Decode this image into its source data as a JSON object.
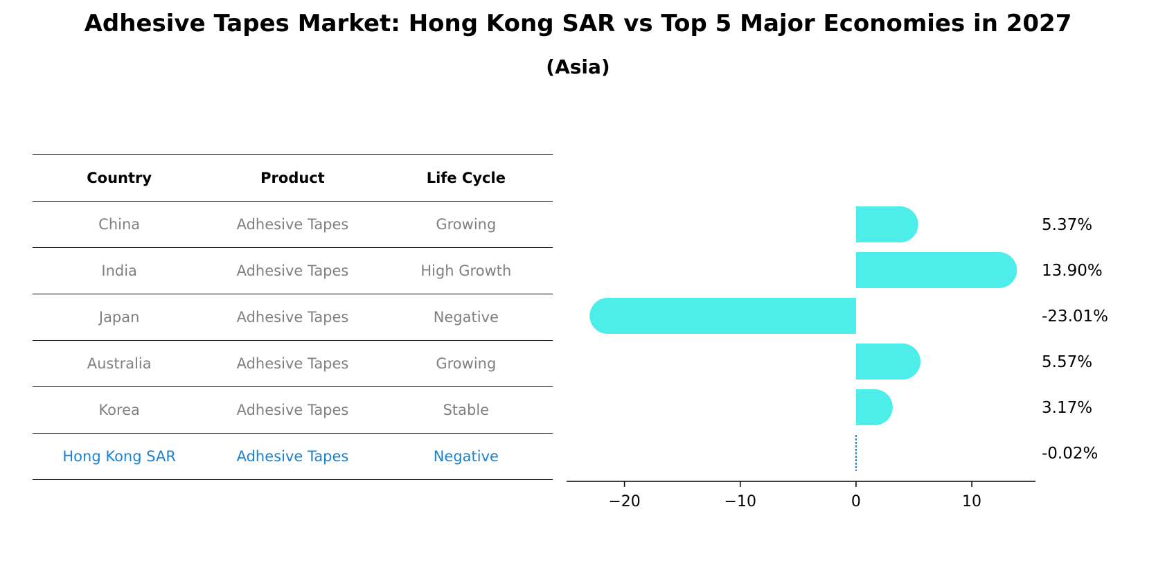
{
  "title": "Adhesive Tapes Market: Hong Kong SAR vs Top 5 Major Economies in 2027",
  "subtitle": "(Asia)",
  "table": {
    "headers": [
      "Country",
      "Product",
      "Life Cycle"
    ],
    "rows": [
      {
        "country": "China",
        "product": "Adhesive Tapes",
        "life_cycle": "Growing"
      },
      {
        "country": "India",
        "product": "Adhesive Tapes",
        "life_cycle": "High Growth"
      },
      {
        "country": "Japan",
        "product": "Adhesive Tapes",
        "life_cycle": "Negative"
      },
      {
        "country": "Australia",
        "product": "Adhesive Tapes",
        "life_cycle": "Growing"
      },
      {
        "country": "Korea",
        "product": "Adhesive Tapes",
        "life_cycle": "Stable"
      },
      {
        "country": "Hong Kong SAR",
        "product": "Adhesive Tapes",
        "life_cycle": "Negative"
      }
    ]
  },
  "colors": {
    "bar": "#4deeea",
    "highlight": "#1a83d1",
    "muted_text": "#808080"
  },
  "chart_data": {
    "type": "bar",
    "orientation": "horizontal",
    "categories": [
      "China",
      "India",
      "Japan",
      "Australia",
      "Korea",
      "Hong Kong SAR"
    ],
    "values": [
      5.37,
      13.9,
      -23.01,
      5.57,
      3.17,
      -0.02
    ],
    "value_labels": [
      "5.37%",
      "13.90%",
      "-23.01%",
      "5.57%",
      "3.17%",
      "-0.02%"
    ],
    "xlim": [
      -25,
      15.5
    ],
    "xticks": [
      -20,
      -10,
      0,
      10
    ],
    "xtick_labels": [
      "−20",
      "−10",
      "0",
      "10"
    ],
    "xlabel": "",
    "ylabel": "",
    "grid": false,
    "legend": "none"
  }
}
